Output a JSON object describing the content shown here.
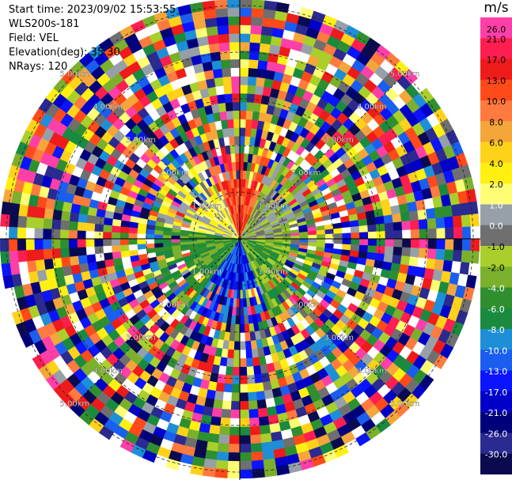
{
  "header": {
    "start_time": "Start time: 2023/09/02 15:53:55",
    "instrument": "WLS200s-181",
    "field": "Field: VEL",
    "elevation": "Elevation(deg): 35.30",
    "nrays": "NRays: 120"
  },
  "range_rings": {
    "labels": [
      "1.00km",
      "2.00km",
      "3.00km",
      "4.00km",
      "5.00km"
    ]
  },
  "colorbar": {
    "title": "m/s",
    "bins": [
      {
        "label": "26.0",
        "color": "#ff3fa8"
      },
      {
        "label": "21.0",
        "color": "#ff1e50"
      },
      {
        "label": "17.0",
        "color": "#ee1b1b"
      },
      {
        "label": "13.0",
        "color": "#ff4a1a"
      },
      {
        "label": "10.0",
        "color": "#ff7a3f"
      },
      {
        "label": "8.0",
        "color": "#f5a63a"
      },
      {
        "label": "6.0",
        "color": "#ffd21a"
      },
      {
        "label": "4.0",
        "color": "#fff012"
      },
      {
        "label": "2.0",
        "color": "#fffd73"
      },
      {
        "label": "1.0",
        "color": "#96a0a8"
      },
      {
        "label": "0.0",
        "color": "#6f6f6f"
      },
      {
        "label": "-1.0",
        "color": "#a8cf2a"
      },
      {
        "label": "-2.0",
        "color": "#7bb02c"
      },
      {
        "label": "-4.0",
        "color": "#2f8f2f"
      },
      {
        "label": "-6.0",
        "color": "#1a8a3f"
      },
      {
        "label": "-8.0",
        "color": "#1e8fd6"
      },
      {
        "label": "-10.0",
        "color": "#1a5ef0"
      },
      {
        "label": "-13.0",
        "color": "#0a14ff"
      },
      {
        "label": "-17.0",
        "color": "#0000c8"
      },
      {
        "label": "-21.0",
        "color": "#00007a"
      },
      {
        "label": "-26.0",
        "color": "#2a2a90"
      },
      {
        "label": "-30.0",
        "color": "#0a0a50"
      }
    ]
  }
}
